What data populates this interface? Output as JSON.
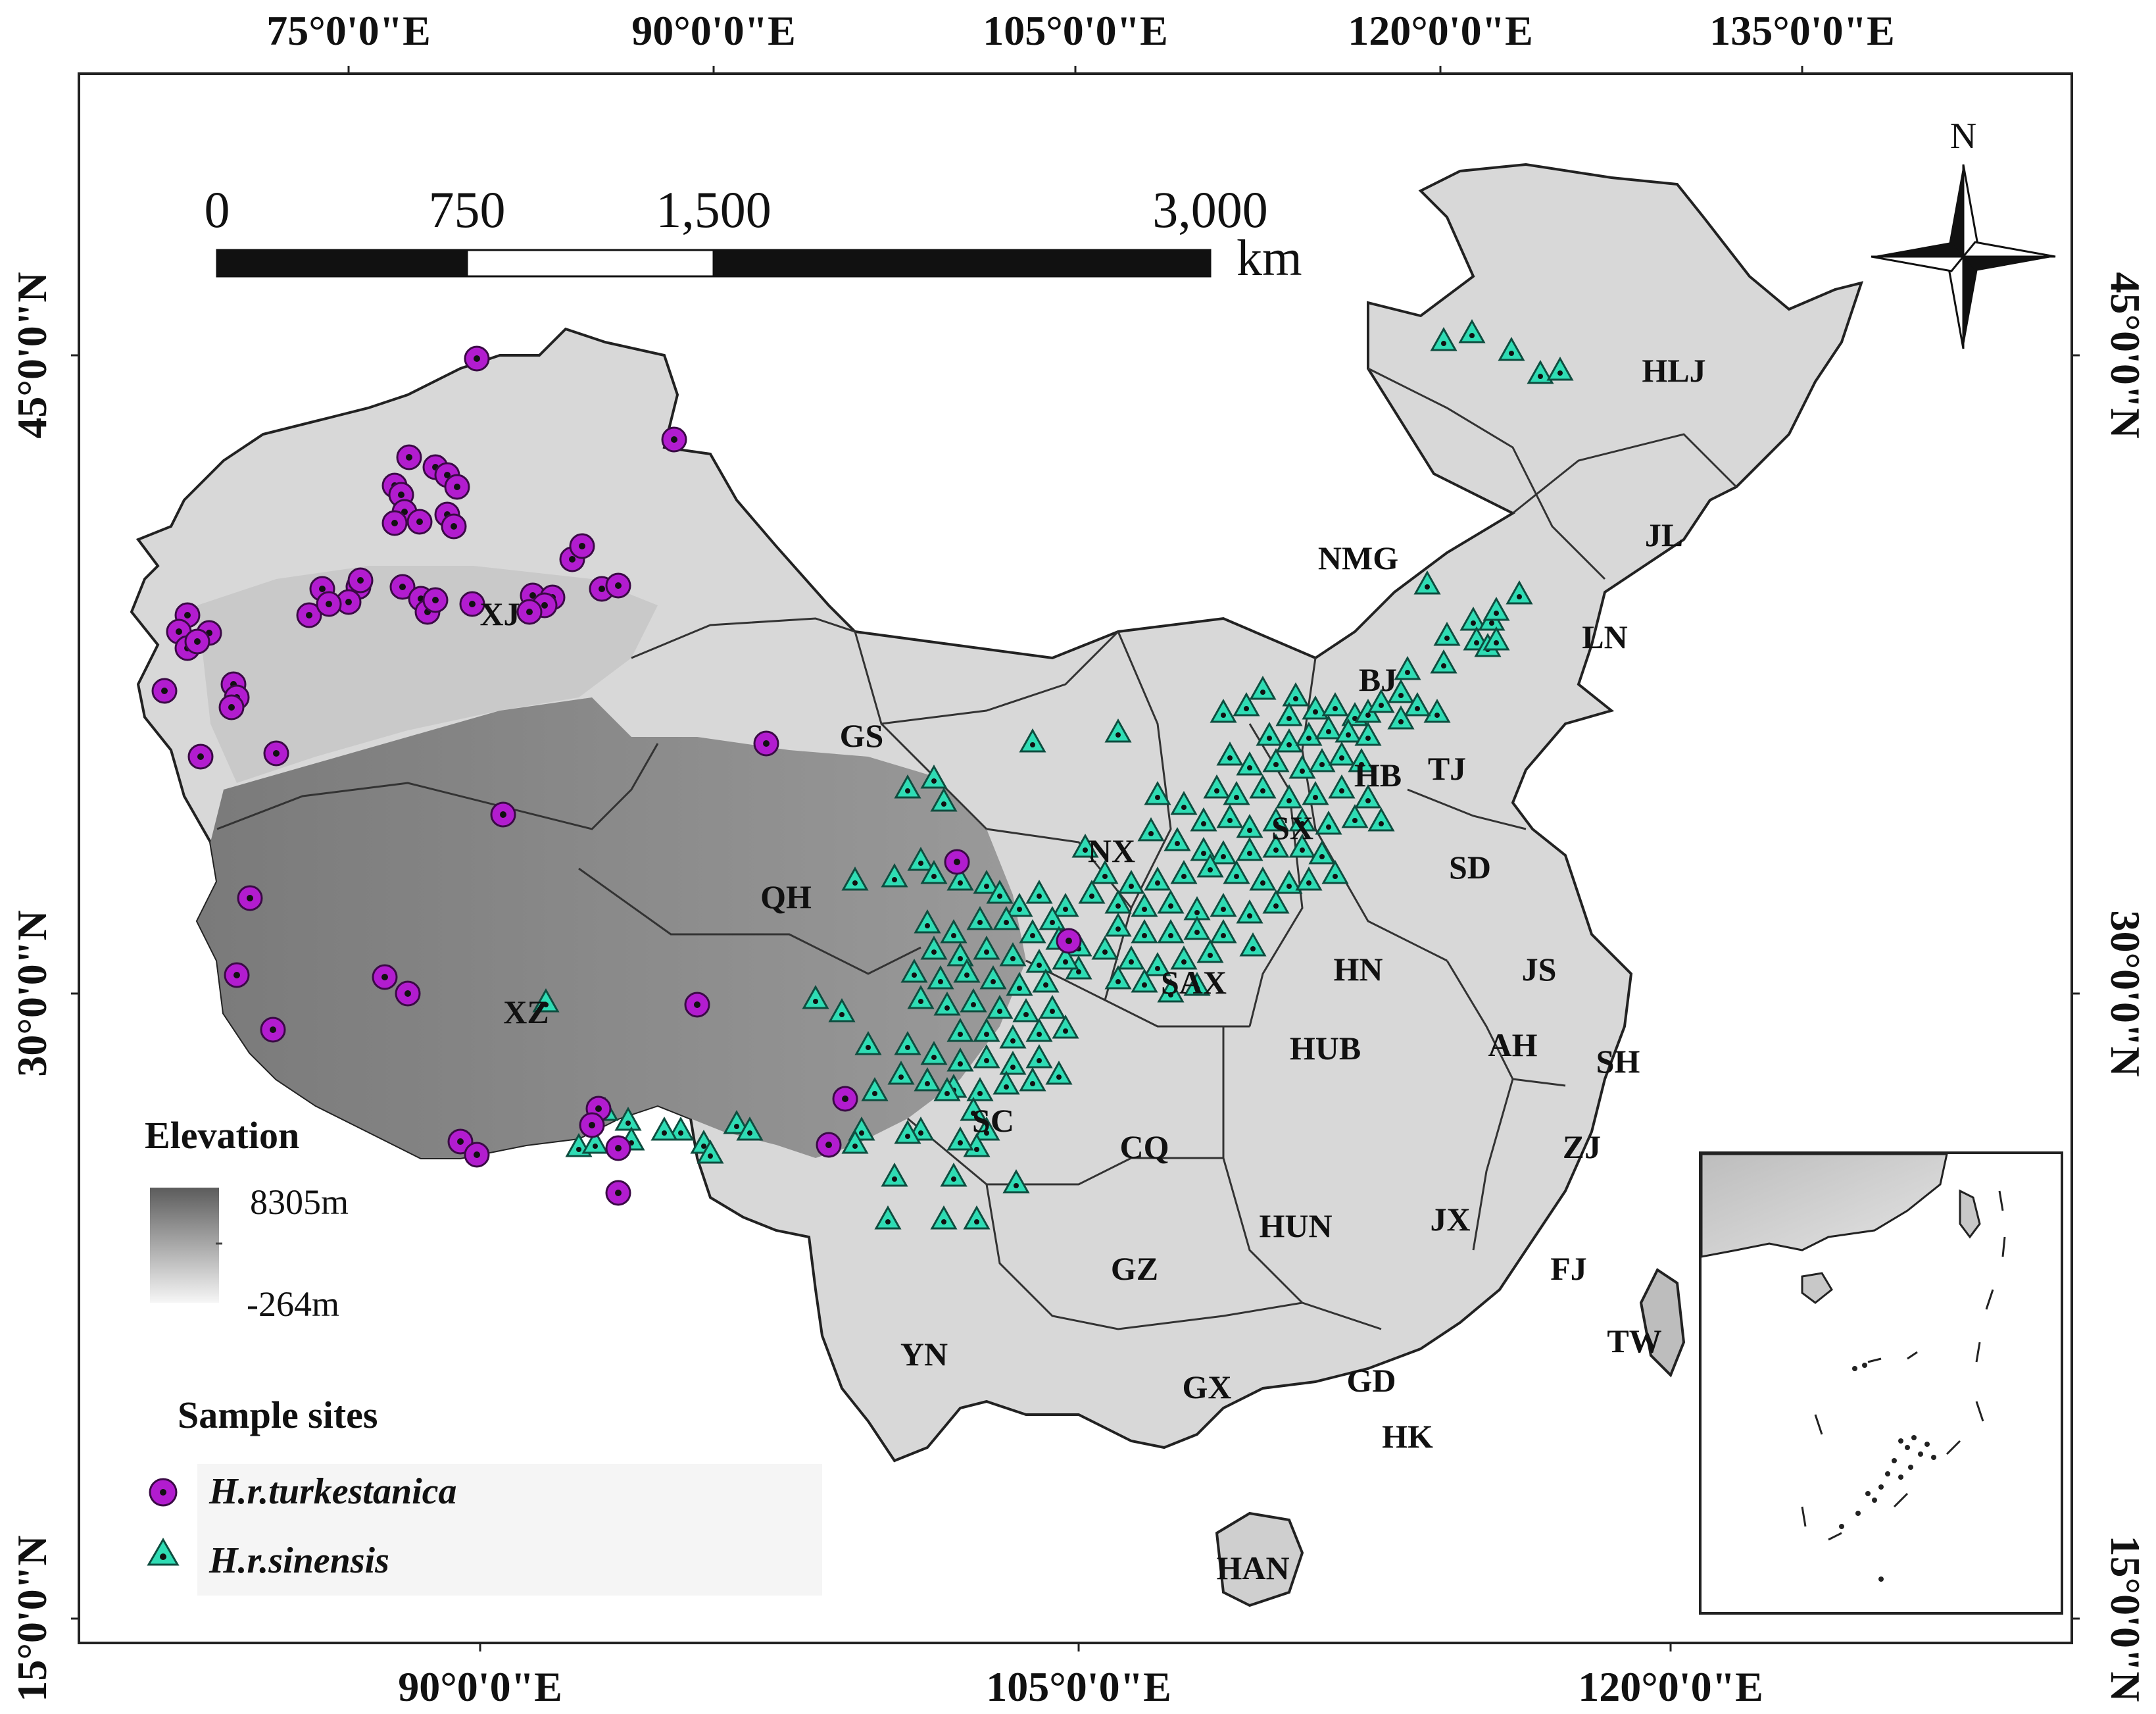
{
  "axes": {
    "top_labels": [
      "75°0'0\"E",
      "90°0'0\"E",
      "105°0'0\"E",
      "120°0'0\"E",
      "135°0'0\"E"
    ],
    "bottom_labels": [
      "90°0'0\"E",
      "105°0'0\"E",
      "120°0'0\"E"
    ],
    "left_labels": [
      "45°0'0\"N",
      "30°0'0\"N",
      "15°0'0\"N"
    ],
    "right_labels": [
      "45°0'0\"N",
      "30°0'0\"N",
      "15°0'0\"N"
    ]
  },
  "scale_bar": {
    "ticks": [
      "0",
      "750",
      "1,500",
      "3,000"
    ],
    "unit": "km"
  },
  "north_arrow": {
    "label": "N"
  },
  "provinces": [
    "HLJ",
    "JL",
    "LN",
    "NMG",
    "BJ",
    "TJ",
    "HB",
    "SX",
    "SD",
    "GS",
    "NX",
    "QH",
    "XJ",
    "XZ",
    "SC",
    "SAX",
    "HN",
    "JS",
    "AH",
    "SH",
    "HUB",
    "ZJ",
    "CQ",
    "GZ",
    "HUN",
    "JX",
    "FJ",
    "TW",
    "YN",
    "GX",
    "GD",
    "HK",
    "HAN"
  ],
  "legend": {
    "elevation_title": "Elevation",
    "elevation_max": "8305m",
    "elevation_min": "-264m",
    "sites_title": "Sample sites",
    "series": [
      {
        "name": "H.r.turkestanica",
        "color": "#b21ccf",
        "symbol": "circle"
      },
      {
        "name": "H.r.sinensis",
        "color": "#2fdcb4",
        "symbol": "triangle"
      }
    ]
  },
  "colors": {
    "turkestanica": "#b21ccf",
    "sinensis": "#2fdcb4",
    "elevation_high": "#5c5c5c",
    "elevation_low": "#f2f2f2"
  }
}
